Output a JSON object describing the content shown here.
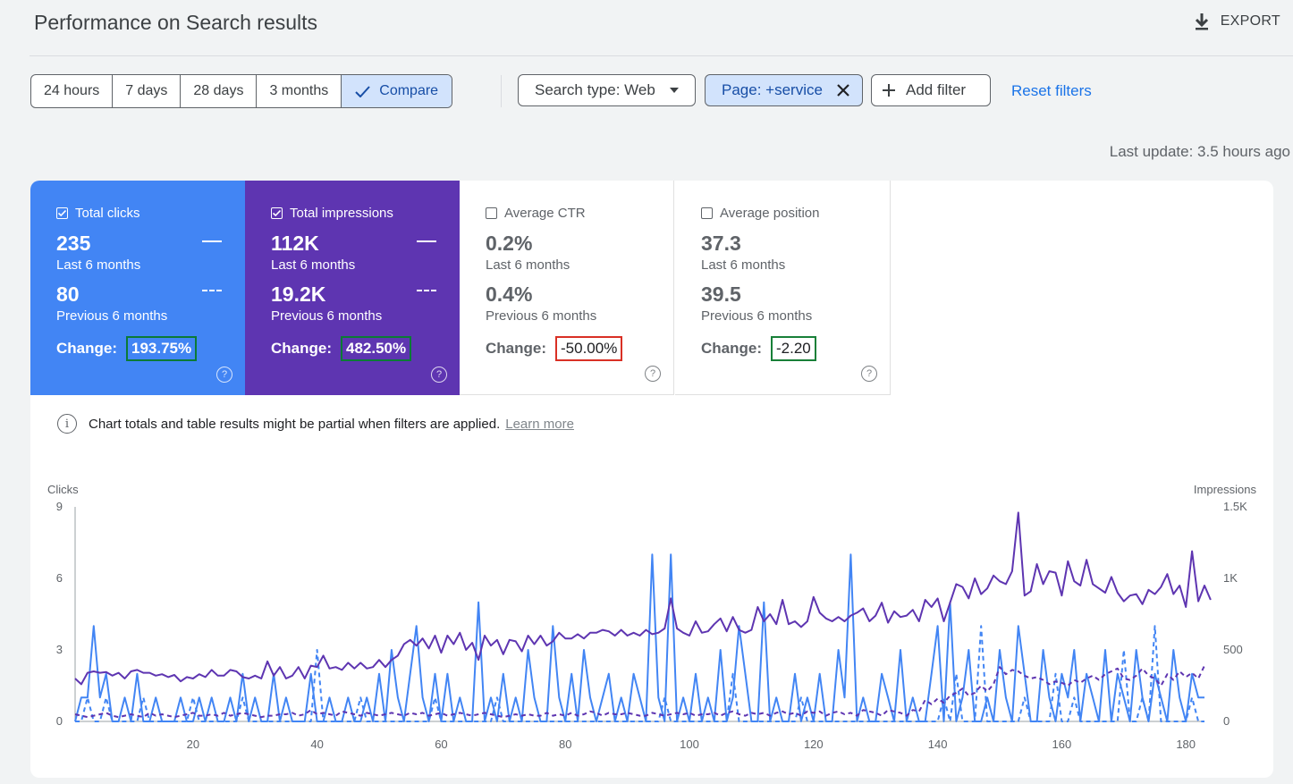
{
  "header": {
    "title": "Performance on Search results",
    "export_label": "EXPORT"
  },
  "filters": {
    "ranges": [
      "24 hours",
      "7 days",
      "28 days",
      "3 months"
    ],
    "compare_label": "Compare",
    "search_type": "Search type: Web",
    "page_filter": "Page: +service",
    "add_filter": "Add filter",
    "reset": "Reset filters"
  },
  "last_update": "Last update: 3.5 hours ago",
  "metrics": [
    {
      "label": "Total clicks",
      "checked": true,
      "current": "235",
      "current_period": "Last 6 months",
      "previous": "80",
      "previous_period": "Previous 6 months",
      "change_label": "Change:",
      "change": "193.75%"
    },
    {
      "label": "Total impressions",
      "checked": true,
      "current": "112K",
      "current_period": "Last 6 months",
      "previous": "19.2K",
      "previous_period": "Previous 6 months",
      "change_label": "Change:",
      "change": "482.50%"
    },
    {
      "label": "Average CTR",
      "checked": false,
      "current": "0.2%",
      "current_period": "Last 6 months",
      "previous": "0.4%",
      "previous_period": "Previous 6 months",
      "change_label": "Change:",
      "change": "-50.00%"
    },
    {
      "label": "Average position",
      "checked": false,
      "current": "37.3",
      "current_period": "Last 6 months",
      "previous": "39.5",
      "previous_period": "Previous 6 months",
      "change_label": "Change:",
      "change": "-2.20"
    }
  ],
  "notice": {
    "text": "Chart totals and table results might be partial when filters are applied.",
    "link": "Learn more"
  },
  "colors": {
    "clicks": "#4285f4",
    "impressions": "#5e35b1",
    "negative": "#d93025",
    "positive": "#188038"
  },
  "chart_data": {
    "type": "line",
    "left_axis_label": "Clicks",
    "right_axis_label": "Impressions",
    "left_ticks": [
      "0",
      "3",
      "6",
      "9"
    ],
    "right_ticks": [
      "0",
      "500",
      "1K",
      "1.5K"
    ],
    "x_ticks": [
      "20",
      "40",
      "60",
      "80",
      "100",
      "120",
      "140",
      "160",
      "180"
    ],
    "ylim_left": [
      0,
      9
    ],
    "ylim_right": [
      0,
      1500
    ],
    "x_range": [
      1,
      183
    ],
    "series": [
      {
        "key": "clicks_current",
        "axis": "left",
        "style": "solid",
        "color": "#4285f4",
        "values": [
          0,
          1,
          1,
          4,
          1,
          2,
          0,
          0,
          1,
          0,
          2,
          0,
          0,
          1,
          0,
          0,
          0,
          1,
          0,
          0,
          1,
          0,
          1,
          0,
          0,
          1,
          0,
          2,
          0,
          1,
          0,
          0,
          2,
          0,
          1,
          0,
          0,
          0,
          2,
          0,
          0,
          1,
          0,
          0,
          1,
          0,
          0,
          1,
          0,
          2,
          0,
          3,
          1,
          0,
          2,
          4,
          1,
          0,
          2,
          0,
          2,
          0,
          1,
          0,
          0,
          5,
          0,
          1,
          0,
          2,
          0,
          1,
          0,
          3,
          1,
          0,
          0,
          4,
          1,
          0,
          2,
          0,
          3,
          1,
          0,
          1,
          2,
          0,
          1,
          0,
          2,
          1,
          0,
          7,
          1,
          0,
          7,
          0,
          1,
          0,
          2,
          0,
          1,
          0,
          3,
          0,
          1,
          4,
          2,
          0,
          0,
          5,
          0,
          1,
          0,
          0,
          2,
          0,
          1,
          0,
          2,
          0,
          0,
          3,
          1,
          7,
          0,
          1,
          0,
          0,
          2,
          1,
          0,
          3,
          0,
          1,
          0,
          0,
          2,
          4,
          0,
          5,
          0,
          1,
          3,
          0,
          0,
          1,
          0,
          3,
          1,
          0,
          4,
          2,
          0,
          0,
          3,
          1,
          0,
          2,
          1,
          3,
          0,
          2,
          1,
          0,
          3,
          0,
          2,
          1,
          0,
          3,
          1,
          0,
          2,
          1,
          0,
          3,
          1,
          0,
          2,
          1,
          1
        ]
      },
      {
        "key": "clicks_previous",
        "axis": "left",
        "style": "dashed",
        "color": "#4285f4",
        "values": [
          0,
          0,
          1,
          0,
          0,
          1,
          0,
          0,
          0,
          0,
          0,
          1,
          0,
          0,
          0,
          0,
          0,
          0,
          0,
          1,
          0,
          0,
          0,
          0,
          0,
          0,
          0,
          1,
          0,
          0,
          0,
          0,
          0,
          0,
          0,
          0,
          0,
          0,
          0,
          3,
          0,
          0,
          0,
          0,
          0,
          0,
          1,
          0,
          0,
          0,
          0,
          0,
          0,
          0,
          0,
          0,
          0,
          0,
          1,
          0,
          0,
          0,
          0,
          0,
          0,
          0,
          0,
          0,
          1,
          0,
          0,
          0,
          0,
          0,
          0,
          0,
          0,
          0,
          0,
          0,
          0,
          0,
          0,
          0,
          0,
          0,
          0,
          0,
          0,
          0,
          0,
          0,
          0,
          0,
          0,
          1,
          0,
          0,
          0,
          0,
          0,
          0,
          0,
          0,
          0,
          0,
          2,
          0,
          0,
          0,
          0,
          0,
          0,
          0,
          0,
          0,
          0,
          1,
          0,
          0,
          0,
          0,
          0,
          0,
          0,
          0,
          0,
          0,
          0,
          0,
          0,
          0,
          0,
          0,
          0,
          0,
          0,
          0,
          0,
          0,
          1,
          0,
          2,
          0,
          0,
          0,
          4,
          0,
          0,
          0,
          0,
          0,
          0,
          1,
          0,
          0,
          0,
          0,
          2,
          0,
          0,
          1,
          0,
          0,
          0,
          0,
          0,
          0,
          0,
          3,
          0,
          0,
          1,
          0,
          4,
          0,
          0,
          0,
          0,
          0,
          1,
          0,
          0
        ]
      },
      {
        "key": "impressions_current",
        "axis": "right",
        "style": "solid",
        "color": "#5e35b1",
        "values": [
          300,
          260,
          340,
          350,
          340,
          345,
          320,
          340,
          300,
          350,
          360,
          340,
          340,
          320,
          330,
          310,
          325,
          280,
          310,
          300,
          330,
          310,
          360,
          320,
          320,
          360,
          350,
          310,
          300,
          320,
          300,
          420,
          320,
          380,
          300,
          320,
          380,
          300,
          390,
          380,
          460,
          370,
          380,
          360,
          410,
          370,
          410,
          370,
          380,
          430,
          380,
          430,
          460,
          540,
          570,
          530,
          580,
          510,
          600,
          480,
          600,
          540,
          620,
          500,
          550,
          430,
          600,
          530,
          570,
          470,
          570,
          560,
          490,
          600,
          540,
          600,
          530,
          560,
          620,
          580,
          580,
          610,
          580,
          620,
          620,
          640,
          630,
          600,
          640,
          600,
          620,
          600,
          640,
          610,
          620,
          650,
          860,
          650,
          620,
          600,
          700,
          620,
          630,
          680,
          720,
          630,
          730,
          640,
          620,
          640,
          800,
          700,
          750,
          680,
          850,
          680,
          700,
          660,
          700,
          870,
          760,
          720,
          700,
          730,
          700,
          740,
          760,
          790,
          700,
          740,
          830,
          690,
          770,
          730,
          740,
          780,
          700,
          850,
          800,
          860,
          700,
          830,
          960,
          940,
          860,
          1000,
          890,
          930,
          1020,
          980,
          960,
          1050,
          1460,
          880,
          910,
          1100,
          960,
          1050,
          1040,
          880,
          1120,
          980,
          950,
          1130,
          960,
          930,
          900,
          1010,
          900,
          840,
          880,
          890,
          820,
          920,
          890,
          940,
          1030,
          890,
          950,
          800,
          1190,
          840,
          950,
          850
        ]
      },
      {
        "key": "impressions_previous",
        "axis": "right",
        "style": "dashed",
        "color": "#5e35b1",
        "values": [
          50,
          40,
          30,
          40,
          50,
          60,
          40,
          30,
          40,
          50,
          40,
          30,
          60,
          40,
          50,
          40,
          30,
          40,
          50,
          60,
          40,
          40,
          50,
          40,
          60,
          40,
          50,
          60,
          50,
          40,
          30,
          40,
          40,
          50,
          50,
          60,
          40,
          50,
          80,
          50,
          60,
          50,
          40,
          70,
          60,
          50,
          40,
          60,
          50,
          40,
          50,
          60,
          50,
          40,
          60,
          50,
          60,
          40,
          50,
          60,
          40,
          50,
          60,
          50,
          40,
          50,
          60,
          50,
          40,
          30,
          40,
          50,
          40,
          50,
          40,
          40,
          60,
          40,
          50,
          40,
          60,
          40,
          50,
          70,
          60,
          40,
          60,
          50,
          50,
          60,
          50,
          40,
          40,
          60,
          50,
          40,
          50,
          60,
          50,
          60,
          40,
          50,
          50,
          60,
          40,
          60,
          70,
          50,
          40,
          60,
          50,
          60,
          40,
          60,
          70,
          50,
          60,
          40,
          70,
          60,
          70,
          40,
          60,
          70,
          50,
          60,
          40,
          80,
          70,
          60,
          40,
          80,
          70,
          60,
          40,
          80,
          70,
          150,
          120,
          160,
          130,
          180,
          200,
          230,
          180,
          200,
          250,
          210,
          260,
          380,
          330,
          360,
          350,
          320,
          300,
          310,
          290,
          260,
          280,
          270,
          250,
          290,
          270,
          300,
          320,
          290,
          330,
          350,
          370,
          300,
          290,
          320,
          370,
          320,
          300,
          250,
          330,
          290,
          350,
          310,
          340,
          300,
          390
        ]
      }
    ]
  }
}
